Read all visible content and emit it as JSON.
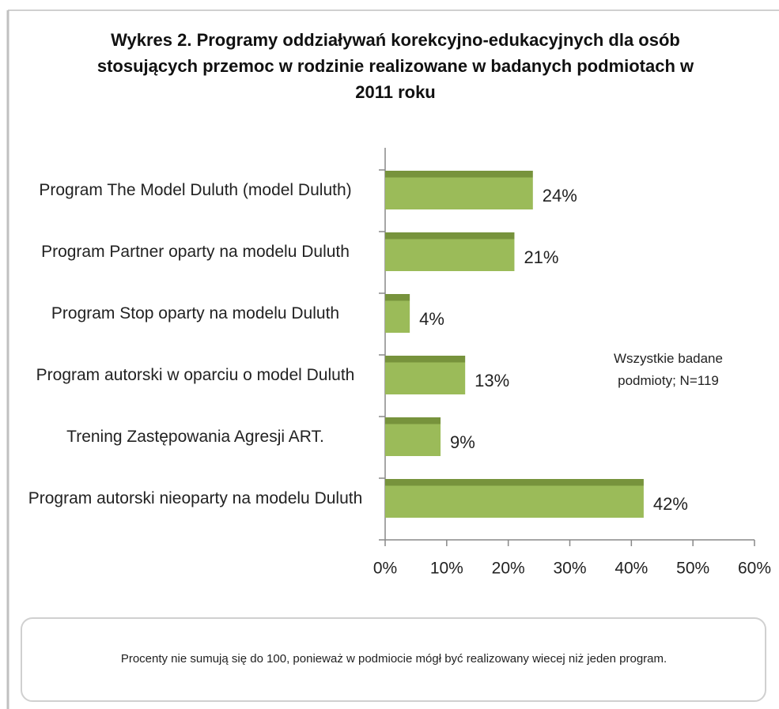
{
  "chart_data": {
    "type": "bar",
    "orientation": "horizontal",
    "title": "Wykres 2. Programy oddziaływań korekcyjno-edukacyjnych dla osób stosujących przemoc w rodzinie realizowane w badanych podmiotach w 2011 roku",
    "categories": [
      "Program The Model Duluth (model Duluth)",
      "Program Partner oparty na modelu Duluth",
      "Program Stop oparty na modelu Duluth",
      "Program autorski w oparciu o model Duluth",
      "Trening Zastępowania Agresji ART.",
      "Program autorski nieoparty na modelu Duluth"
    ],
    "values": [
      24,
      21,
      4,
      13,
      9,
      42
    ],
    "value_labels": [
      "24%",
      "21%",
      "4%",
      "13%",
      "9%",
      "42%"
    ],
    "color": "#9bbb59",
    "xlim": [
      0,
      60
    ],
    "xticks": [
      {
        "value": 0,
        "label": "0%"
      },
      {
        "value": 10,
        "label": "10%"
      },
      {
        "value": 20,
        "label": "20%"
      },
      {
        "value": 30,
        "label": "30%"
      },
      {
        "value": 40,
        "label": "40%"
      },
      {
        "value": 50,
        "label": "50%"
      },
      {
        "value": 60,
        "label": "60%"
      }
    ],
    "annotation": "Wszystkie badane podmioty;  N=119",
    "footnote": "Procenty nie sumują  się do 100, ponieważ w podmiocie mógł być realizowany wiecej niż jeden program."
  }
}
